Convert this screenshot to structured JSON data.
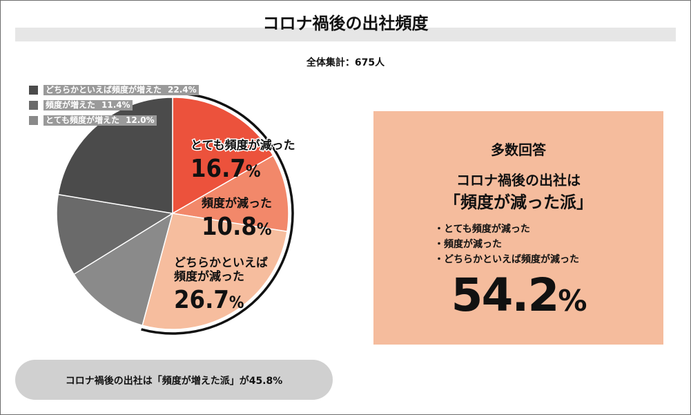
{
  "title": "コロナ禍後の出社頻度",
  "subtitle": "全体集計：675人",
  "legend": [
    {
      "label": "どちらかといえば頻度が増えた",
      "value": "22.4%",
      "color": "#4b4b4b"
    },
    {
      "label": "頻度が増えた",
      "value": "11.4%",
      "color": "#6a6a6a"
    },
    {
      "label": "とても頻度が増えた",
      "value": "12.0%",
      "color": "#8a8a8a"
    }
  ],
  "chart_data": {
    "type": "pie",
    "title": "コロナ禍後の出社頻度",
    "slices": [
      {
        "label": "とても頻度が減った",
        "value": 16.7,
        "display": "16.7%",
        "color": "#ec523c"
      },
      {
        "label": "頻度が減った",
        "value": 10.8,
        "display": "10.8%",
        "color": "#f2886a"
      },
      {
        "label": "どちらかといえば頻度が減った",
        "value": 26.7,
        "display": "26.7%",
        "color": "#f6bd9e"
      },
      {
        "label": "とても頻度が増えた",
        "value": 12.0,
        "display": "12.0%",
        "color": "#8a8a8a"
      },
      {
        "label": "頻度が増えた",
        "value": 11.4,
        "display": "11.4%",
        "color": "#6a6a6a"
      },
      {
        "label": "どちらかといえば頻度が増えた",
        "value": 22.4,
        "display": "22.4%",
        "color": "#4b4b4b"
      }
    ]
  },
  "pie_labels": [
    {
      "lines": [
        "とても頻度が減った"
      ],
      "value": "16.7",
      "highlight": true
    },
    {
      "lines": [
        "頻度が減った"
      ],
      "value": "10.8",
      "highlight": false
    },
    {
      "lines": [
        "どちらかといえば",
        "頻度が減った"
      ],
      "value": "26.7",
      "highlight": false
    }
  ],
  "panel": {
    "heading": "多数回答",
    "line1": "コロナ禍後の出社は",
    "line2": "「頻度が減った派」",
    "items": [
      "とても頻度が減った",
      "頻度が減った",
      "どちらかといえば頻度が減った"
    ],
    "big_value": "54.2",
    "big_unit": "%",
    "color": "#f5bc9d"
  },
  "footer": "コロナ禍後の出社は「頻度が増えた派」が45.8%"
}
